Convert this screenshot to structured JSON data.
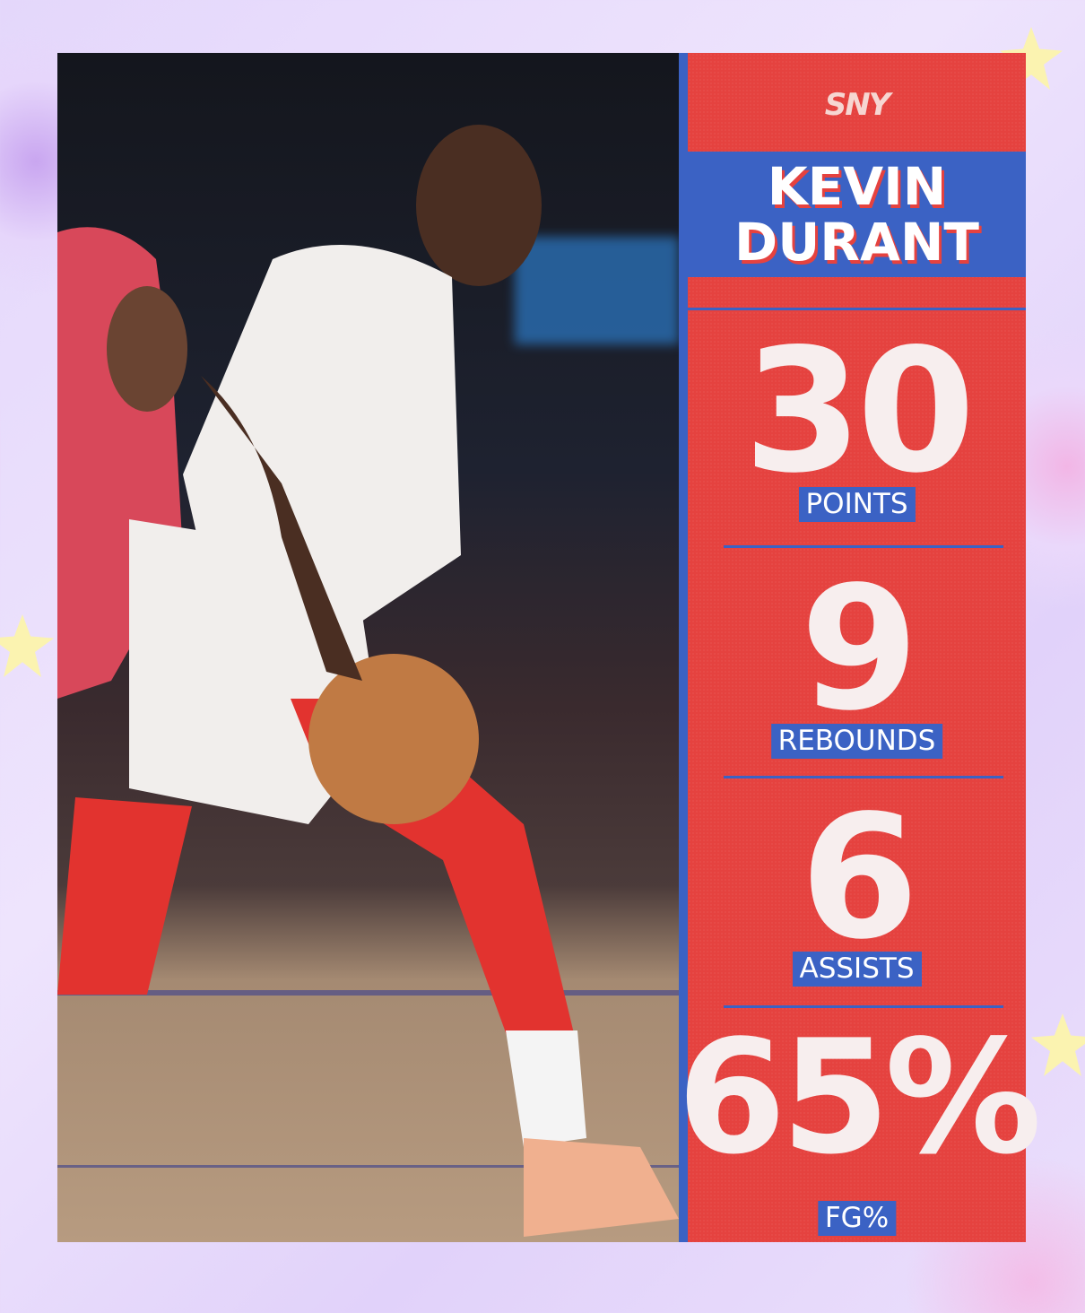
{
  "brand": {
    "logo_text": "SNY"
  },
  "player": {
    "first_name": "KEVIN",
    "last_name": "DURANT"
  },
  "stats": [
    {
      "value": "30",
      "label": "POINTS"
    },
    {
      "value": "9",
      "label": "REBOUNDS"
    },
    {
      "value": "6",
      "label": "ASSISTS"
    },
    {
      "value": "65%",
      "label": "FG%"
    }
  ],
  "colors": {
    "panel_red": "#e5423f",
    "accent_blue": "#3b62c4",
    "background_lavender": "#e4d7fb"
  }
}
